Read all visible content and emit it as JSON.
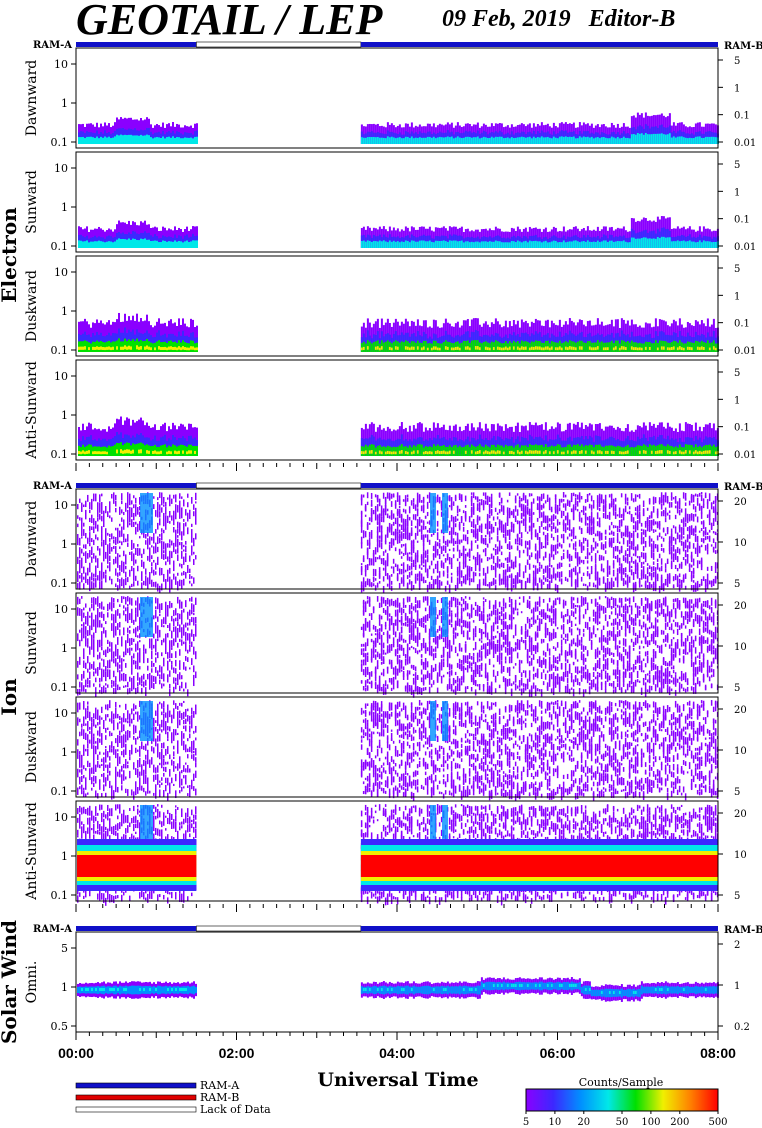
{
  "header": {
    "title": "GEOTAIL / LEP",
    "date": "09 Feb, 2019",
    "editor": "Editor-B"
  },
  "chart_data": {
    "type": "heatmap",
    "xlabel": "Universal Time",
    "x_ticks": [
      "00:00",
      "02:00",
      "04:00",
      "06:00",
      "08:00"
    ],
    "xlim_hours": [
      0,
      8
    ],
    "data_gaps_hours": [
      [
        1.5,
        3.55
      ]
    ],
    "ram_bar_labels": {
      "left": "RAM-A",
      "right": "RAM-B"
    },
    "groups": [
      {
        "name": "Electron",
        "panels": [
          {
            "label": "Dawnward",
            "left_ticks": [
              "0.1",
              "1",
              "10"
            ],
            "right_ticks": [
              "0.01",
              "0.1",
              "1",
              "5"
            ]
          },
          {
            "label": "Sunward",
            "left_ticks": [
              "0.1",
              "1",
              "10"
            ],
            "right_ticks": [
              "0.01",
              "0.1",
              "1",
              "5"
            ]
          },
          {
            "label": "Duskward",
            "left_ticks": [
              "0.1",
              "1",
              "10"
            ],
            "right_ticks": [
              "0.01",
              "0.1",
              "1",
              "5"
            ]
          },
          {
            "label": "Anti-Sunward",
            "left_ticks": [
              "0.1",
              "1",
              "10"
            ],
            "right_ticks": [
              "0.01",
              "0.1",
              "1",
              "5"
            ]
          }
        ]
      },
      {
        "name": "Ion",
        "panels": [
          {
            "label": "Dawnward",
            "left_ticks": [
              "0.1",
              "1",
              "10"
            ],
            "right_ticks": [
              "5",
              "10",
              "20"
            ]
          },
          {
            "label": "Sunward",
            "left_ticks": [
              "0.1",
              "1",
              "10"
            ],
            "right_ticks": [
              "5",
              "10",
              "20"
            ]
          },
          {
            "label": "Duskward",
            "left_ticks": [
              "0.1",
              "1",
              "10"
            ],
            "right_ticks": [
              "5",
              "10",
              "20"
            ]
          },
          {
            "label": "Anti-Sunward",
            "left_ticks": [
              "0.1",
              "1",
              "10"
            ],
            "right_ticks": [
              "5",
              "10",
              "20"
            ]
          }
        ]
      },
      {
        "name": "Solar Wind",
        "panels": [
          {
            "label": "Omni.",
            "left_ticks": [
              "0.5",
              "1",
              "5"
            ],
            "right_ticks": [
              "0.2",
              "1",
              "2"
            ]
          }
        ]
      }
    ],
    "legend": {
      "items": [
        "RAM-A",
        "RAM-B",
        "Lack of Data"
      ],
      "colors": [
        "#1010c8",
        "#e00000",
        "#ffffff"
      ]
    },
    "colorbar": {
      "title": "Counts/Sample",
      "ticks": [
        "5",
        "10",
        "20",
        "50",
        "100",
        "200",
        "500"
      ],
      "colors": [
        "#8a00ff",
        "#3c28ff",
        "#0090ff",
        "#00e8e8",
        "#00e000",
        "#f0f000",
        "#ff8000",
        "#ff0000"
      ]
    }
  }
}
